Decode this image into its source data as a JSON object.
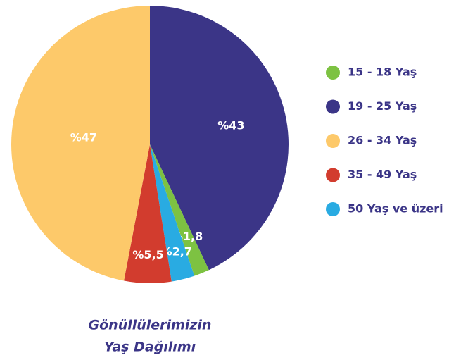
{
  "chart_data": {
    "type": "pie",
    "title": "Gönüllülerimizin",
    "subtitle": "Yaş Dağılımı",
    "categories": [
      "15 - 18 Yaş",
      "19 - 25 Yaş",
      "26 - 34 Yaş",
      "35 - 49 Yaş",
      "50 Yaş ve üzeri"
    ],
    "values": [
      1.8,
      43,
      47,
      5.5,
      2.7
    ],
    "value_labels": [
      "%1,8",
      "%43",
      "%47",
      "%5,5",
      "%2,7"
    ],
    "colors": [
      "#7dc242",
      "#3b3587",
      "#fdc96a",
      "#d23c2e",
      "#29abe2"
    ]
  }
}
